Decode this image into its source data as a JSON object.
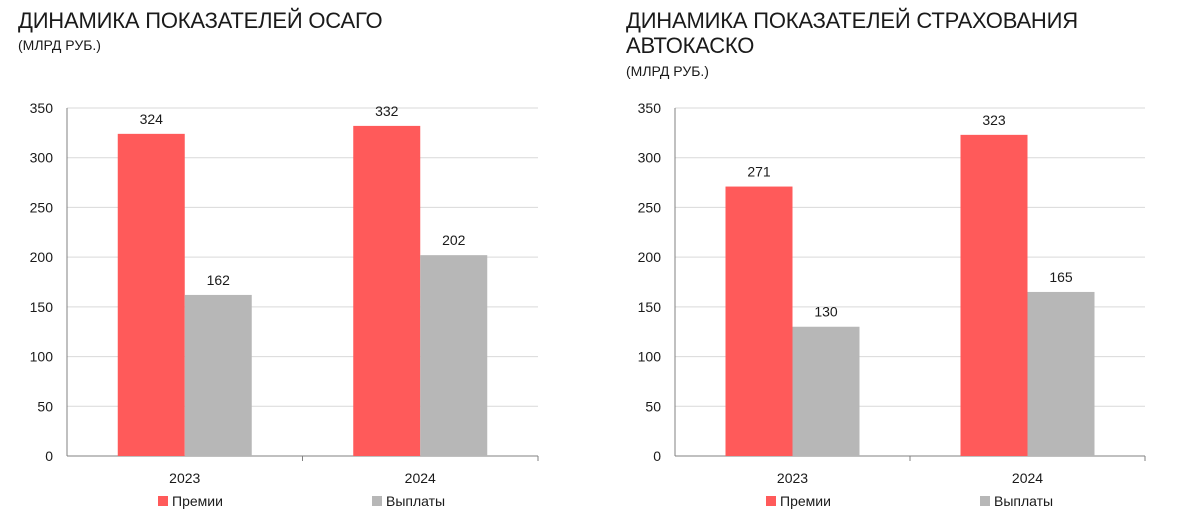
{
  "colors": {
    "premiums": "#ff5a5a",
    "payouts": "#b7b7b7",
    "grid": "#d9d9d9",
    "axis": "#808080"
  },
  "chart_data": [
    {
      "type": "bar",
      "title": "ДИНАМИКА ПОКАЗАТЕЛЕЙ ОСАГО",
      "subtitle": "(МЛРД РУБ.)",
      "categories": [
        "2023",
        "2024"
      ],
      "series": [
        {
          "name": "Премии",
          "values": [
            324,
            332
          ]
        },
        {
          "name": "Выплаты",
          "values": [
            162,
            202
          ]
        }
      ],
      "xlabel": "",
      "ylabel": "",
      "ylim": [
        0,
        350
      ],
      "yticks": [
        0,
        50,
        100,
        150,
        200,
        250,
        300,
        350
      ],
      "grid": true,
      "legend": "bottom"
    },
    {
      "type": "bar",
      "title": "ДИНАМИКА ПОКАЗАТЕЛЕЙ СТРАХОВАНИЯ АВТОКАСКО",
      "subtitle": "(МЛРД РУБ.)",
      "categories": [
        "2023",
        "2024"
      ],
      "series": [
        {
          "name": "Премии",
          "values": [
            271,
            323
          ]
        },
        {
          "name": "Выплаты",
          "values": [
            130,
            165
          ]
        }
      ],
      "xlabel": "",
      "ylabel": "",
      "ylim": [
        0,
        350
      ],
      "yticks": [
        0,
        50,
        100,
        150,
        200,
        250,
        300,
        350
      ],
      "grid": true,
      "legend": "bottom"
    }
  ]
}
